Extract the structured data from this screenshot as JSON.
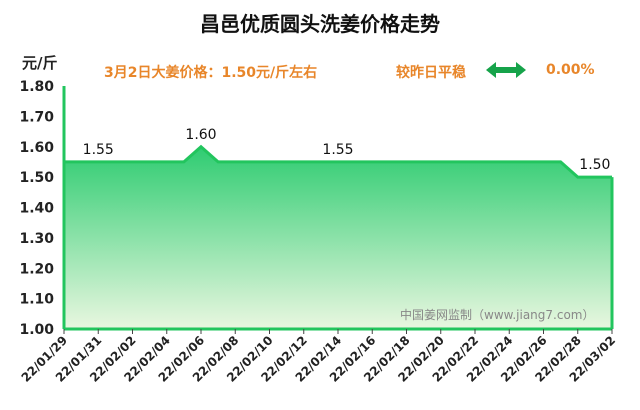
{
  "title": "昌邑优质圆头洗姜价格走势",
  "unit_label": "元/斤",
  "price_note": "3月2日大姜价格：1.50元/斤左右",
  "compare_label": "较昨日平稳",
  "compare_value": "0.00%",
  "arrow_icon": "double-arrow-icon",
  "watermark": "中国姜网监制（www.jiang7.com）",
  "colors": {
    "line": "#22c55e",
    "fill_top": "#2ecc71",
    "fill_bottom": "#e9f7e0",
    "accent": "#e8862a",
    "arrow": "#16a34a"
  },
  "chart_data": {
    "type": "area",
    "x": [
      "22/01/29",
      "22/01/31",
      "22/02/02",
      "22/02/04",
      "22/02/05",
      "22/02/06",
      "22/02/07",
      "22/02/08",
      "22/02/10",
      "22/02/12",
      "22/02/14",
      "22/02/16",
      "22/02/18",
      "22/02/20",
      "22/02/22",
      "22/02/24",
      "22/02/26",
      "22/02/27",
      "22/02/28",
      "22/03/01",
      "22/03/02"
    ],
    "values": [
      1.55,
      1.55,
      1.55,
      1.55,
      1.55,
      1.6,
      1.55,
      1.55,
      1.55,
      1.55,
      1.55,
      1.55,
      1.55,
      1.55,
      1.55,
      1.55,
      1.55,
      1.55,
      1.5,
      1.5,
      1.5
    ],
    "x_tick_labels": [
      "22/01/29",
      "22/01/31",
      "22/02/02",
      "22/02/04",
      "22/02/06",
      "22/02/08",
      "22/02/10",
      "22/02/12",
      "22/02/14",
      "22/02/16",
      "22/02/18",
      "22/02/20",
      "22/02/22",
      "22/02/24",
      "22/02/26",
      "22/02/28",
      "22/03/02"
    ],
    "y_ticks": [
      "1.00",
      "1.10",
      "1.20",
      "1.30",
      "1.40",
      "1.50",
      "1.60",
      "1.70",
      "1.80"
    ],
    "data_labels": [
      {
        "x": "22/01/31",
        "text": "1.55"
      },
      {
        "x": "22/02/06",
        "text": "1.60"
      },
      {
        "x": "22/02/14",
        "text": "1.55"
      },
      {
        "x": "22/03/01",
        "text": "1.50"
      }
    ],
    "ylim": [
      1.0,
      1.8
    ],
    "grid": false,
    "legend": "none"
  }
}
